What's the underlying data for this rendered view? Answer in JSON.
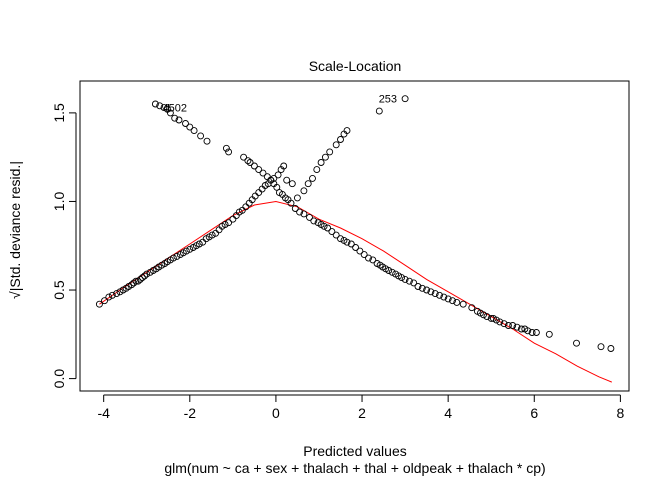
{
  "chart_data": {
    "type": "scatter",
    "title": "Scale-Location",
    "xlabel": "Predicted values",
    "subtitle": "glm(num ~ ca + sex + thalach + thal + oldpeak + thalach * cp)",
    "ylabel": "√|Std. deviance resid.|",
    "xlim": [
      -4.55,
      8.2
    ],
    "ylim": [
      -0.07,
      1.68
    ],
    "xticks": [
      -4,
      -2,
      0,
      2,
      4,
      6,
      8
    ],
    "yticks": [
      0.0,
      0.5,
      1.0,
      1.5
    ],
    "xtick_labels": [
      "-4",
      "-2",
      "0",
      "2",
      "4",
      "6",
      "8"
    ],
    "ytick_labels": [
      "0.0",
      "0.5",
      "1.0",
      "1.5"
    ],
    "grid": false,
    "colors": {
      "points": "#000000",
      "smooth": "#ff0000",
      "axes": "#000000"
    },
    "annotations": [
      {
        "text": "253",
        "x": 2.6,
        "y": 1.58
      },
      {
        "text": "1",
        "x": -2.5,
        "y": 1.53
      },
      {
        "text": "4502",
        "x": -2.35,
        "y": 1.53
      }
    ],
    "series": [
      {
        "kind": "points",
        "x": [
          -4.1,
          -3.98,
          -3.88,
          -3.8,
          -3.7,
          -3.62,
          -3.55,
          -3.48,
          -3.42,
          -3.35,
          -3.3,
          -3.25,
          -3.2,
          -3.15,
          -3.1,
          -3.05,
          -3.0,
          -2.92,
          -2.85,
          -2.78,
          -2.72,
          -2.65,
          -2.58,
          -2.52,
          -2.45,
          -2.38,
          -2.3,
          -2.22,
          -2.15,
          -2.08,
          -2.0,
          -1.92,
          -1.85,
          -1.78,
          -1.7,
          -1.62,
          -1.55,
          -1.48,
          -1.4,
          -1.32,
          -1.25,
          -1.18,
          -1.1,
          -1.0,
          -0.92,
          -0.85,
          -0.78,
          -0.7,
          -0.62,
          -0.55,
          -0.48,
          -0.4,
          -0.32,
          -0.25,
          -0.18,
          -0.12,
          -0.05,
          0.02,
          0.08,
          0.15,
          0.22,
          0.28,
          0.35,
          0.45,
          0.55,
          0.65,
          0.78,
          0.88,
          0.98,
          1.05,
          1.12,
          1.2,
          1.3,
          1.4,
          1.5,
          1.58,
          1.65,
          1.75,
          1.85,
          1.95,
          2.05,
          2.15,
          2.25,
          2.35,
          2.42,
          2.48,
          2.55,
          2.62,
          2.7,
          2.78,
          2.85,
          2.92,
          3.0,
          3.1,
          3.2,
          3.3,
          3.4,
          3.5,
          3.6,
          3.7,
          3.8,
          3.9,
          4.0,
          4.1,
          4.2,
          4.35,
          4.55,
          4.68,
          4.75,
          4.82,
          4.9,
          5.0,
          5.05,
          5.12,
          5.2,
          5.3,
          5.4,
          5.5,
          5.6,
          5.7,
          5.78,
          5.85,
          5.95,
          6.05,
          6.35,
          6.98,
          7.55,
          7.78,
          -2.8,
          -2.7,
          -2.6,
          -2.52,
          -2.45,
          -2.35,
          -2.25,
          -2.1,
          -2.0,
          -1.9,
          -1.75,
          -1.6,
          -1.15,
          -1.1,
          -0.75,
          -0.65,
          -0.6,
          -0.5,
          -0.4,
          -0.3,
          -0.2,
          -0.12,
          -0.05,
          0.05,
          0.12,
          0.18,
          0.25,
          0.38,
          0.5,
          0.65,
          0.75,
          0.85,
          0.95,
          1.05,
          1.15,
          1.25,
          1.4,
          1.5,
          1.58,
          1.65,
          2.4,
          3.0
        ],
        "y": [
          0.42,
          0.44,
          0.46,
          0.47,
          0.48,
          0.49,
          0.5,
          0.51,
          0.52,
          0.53,
          0.54,
          0.55,
          0.55,
          0.56,
          0.57,
          0.58,
          0.59,
          0.6,
          0.61,
          0.62,
          0.63,
          0.64,
          0.65,
          0.66,
          0.67,
          0.68,
          0.69,
          0.7,
          0.71,
          0.72,
          0.73,
          0.74,
          0.75,
          0.76,
          0.77,
          0.79,
          0.8,
          0.81,
          0.82,
          0.84,
          0.86,
          0.87,
          0.88,
          0.9,
          0.92,
          0.94,
          0.95,
          0.97,
          0.99,
          1.01,
          1.03,
          1.05,
          1.07,
          1.09,
          1.1,
          1.12,
          1.13,
          1.08,
          1.05,
          1.04,
          1.02,
          1.01,
          0.99,
          0.96,
          0.94,
          0.93,
          0.91,
          0.89,
          0.88,
          0.87,
          0.86,
          0.85,
          0.83,
          0.81,
          0.79,
          0.78,
          0.77,
          0.76,
          0.74,
          0.72,
          0.7,
          0.68,
          0.67,
          0.65,
          0.64,
          0.63,
          0.62,
          0.61,
          0.6,
          0.59,
          0.58,
          0.57,
          0.56,
          0.55,
          0.54,
          0.52,
          0.51,
          0.5,
          0.49,
          0.48,
          0.47,
          0.46,
          0.45,
          0.44,
          0.43,
          0.42,
          0.4,
          0.38,
          0.37,
          0.36,
          0.35,
          0.34,
          0.34,
          0.33,
          0.32,
          0.31,
          0.3,
          0.3,
          0.29,
          0.28,
          0.28,
          0.27,
          0.26,
          0.26,
          0.25,
          0.2,
          0.18,
          0.17,
          1.55,
          1.54,
          1.53,
          1.52,
          1.5,
          1.47,
          1.46,
          1.44,
          1.42,
          1.4,
          1.37,
          1.34,
          1.3,
          1.28,
          1.25,
          1.23,
          1.22,
          1.2,
          1.18,
          1.16,
          1.14,
          1.12,
          1.1,
          1.15,
          1.18,
          1.2,
          1.12,
          1.1,
          1.02,
          1.06,
          1.1,
          1.13,
          1.18,
          1.22,
          1.25,
          1.28,
          1.32,
          1.35,
          1.38,
          1.4,
          1.51,
          1.58
        ]
      },
      {
        "kind": "smooth",
        "x": [
          -4.1,
          -3.5,
          -3.0,
          -2.5,
          -2.0,
          -1.5,
          -1.0,
          -0.5,
          0.0,
          0.5,
          1.0,
          1.5,
          2.0,
          2.5,
          3.0,
          3.5,
          4.0,
          4.5,
          5.0,
          5.5,
          6.0,
          6.5,
          7.0,
          7.5,
          7.8
        ],
        "y": [
          0.42,
          0.52,
          0.6,
          0.68,
          0.76,
          0.84,
          0.92,
          0.98,
          1.0,
          0.97,
          0.9,
          0.85,
          0.79,
          0.72,
          0.64,
          0.56,
          0.49,
          0.42,
          0.35,
          0.28,
          0.2,
          0.14,
          0.07,
          0.01,
          -0.02
        ]
      }
    ]
  }
}
